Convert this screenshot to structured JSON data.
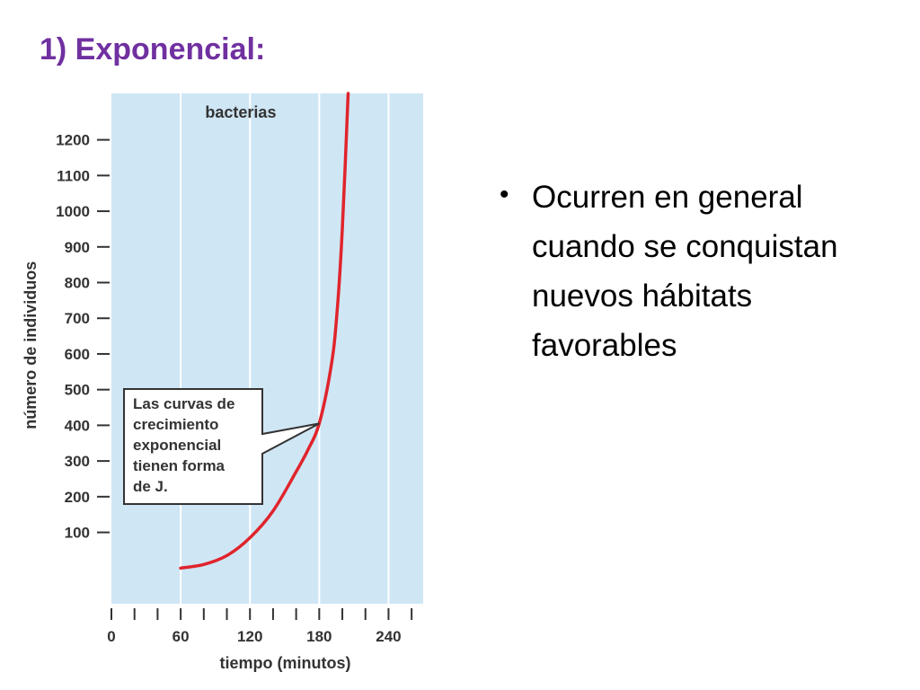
{
  "slide": {
    "title": "1) Exponencial:",
    "bullets": [
      "Ocurren en general cuando se conquistan nuevos hábitats favorables"
    ]
  },
  "colors": {
    "title": "#7030a0",
    "plot_background": "#cfe6f5",
    "gridline": "#ffffff",
    "curve": "#e0242c",
    "callout_border": "#333333",
    "callout_fill": "#ffffff"
  },
  "chart_data": {
    "type": "line",
    "title": "",
    "series": [
      {
        "name": "bacterias",
        "x": [
          60,
          80,
          100,
          120,
          140,
          160,
          170,
          180,
          190,
          195,
          200,
          205
        ],
        "y": [
          0,
          10,
          35,
          85,
          160,
          270,
          330,
          405,
          560,
          700,
          950,
          1330
        ]
      }
    ],
    "xlabel": "tiempo (minutos)",
    "ylabel": "número de individuos",
    "xlim": [
      0,
      270
    ],
    "ylim": [
      -100,
      1330
    ],
    "x_ticks": [
      0,
      60,
      120,
      180,
      240
    ],
    "x_minor_ticks": [
      20,
      40,
      80,
      100,
      140,
      160,
      200,
      220,
      260
    ],
    "y_ticks": [
      100,
      200,
      300,
      400,
      500,
      600,
      700,
      800,
      900,
      1000,
      1100,
      1200
    ],
    "grid": "vertical",
    "legend": "top-center",
    "annotations": [
      {
        "text_lines": [
          "Las curvas de",
          "crecimiento",
          "exponencial",
          "tienen forma",
          "de J."
        ],
        "points_to": {
          "x": 180,
          "y": 405
        }
      }
    ]
  }
}
